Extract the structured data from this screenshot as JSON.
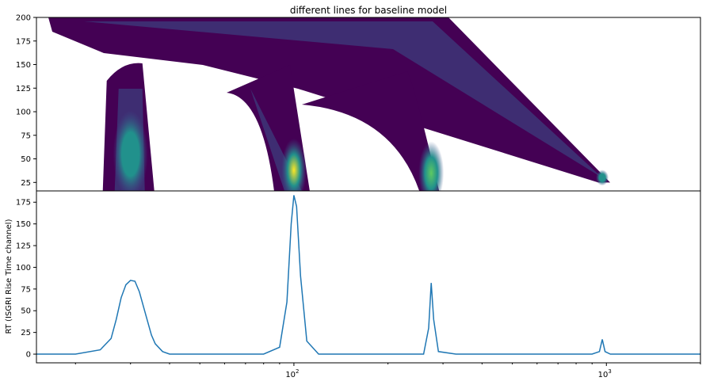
{
  "chart_data": [
    {
      "type": "heatmap",
      "title": "different lines for baseline model",
      "xlabel": "",
      "ylabel": "",
      "xscale": "log",
      "xlim": [
        15,
        2000
      ],
      "ylim": [
        16,
        200
      ],
      "yticks": [
        25,
        50,
        75,
        100,
        125,
        150,
        175,
        200
      ],
      "colormap": [
        "#440154",
        "#3b528b",
        "#21918c",
        "#5ec962",
        "#fde725"
      ],
      "blobs": [
        {
          "x": 30,
          "y": 55,
          "peak": 0.55
        },
        {
          "x": 100,
          "y": 38,
          "peak": 1.0
        },
        {
          "x": 275,
          "y": 35,
          "peak": 0.8
        },
        {
          "x": 970,
          "y": 30,
          "peak": 0.7
        }
      ]
    },
    {
      "type": "line",
      "title": "",
      "xlabel": "",
      "ylabel": "RT (ISGRI Rise Time channel)",
      "xscale": "log",
      "xlim": [
        15,
        2000
      ],
      "ylim": [
        -10,
        188
      ],
      "yticks": [
        0,
        25,
        50,
        75,
        100,
        125,
        150,
        175
      ],
      "xticks": [
        {
          "value": 100,
          "base": "10",
          "exp": "2"
        },
        {
          "value": 1000,
          "base": "10",
          "exp": "3"
        }
      ],
      "line_color": "#1f77b4",
      "series": [
        {
          "x": [
            15,
            20,
            24,
            26,
            27,
            28,
            29,
            30,
            31,
            32,
            33,
            34,
            35,
            36,
            38,
            40,
            50,
            80,
            90,
            95,
            98,
            100,
            102,
            105,
            110,
            120,
            200,
            260,
            270,
            275,
            280,
            290,
            330,
            900,
            950,
            970,
            990,
            1030,
            2000
          ],
          "y": [
            0,
            0,
            5,
            18,
            40,
            65,
            80,
            85,
            84,
            72,
            55,
            38,
            22,
            12,
            3,
            0,
            0,
            0,
            8,
            60,
            150,
            183,
            170,
            90,
            15,
            0,
            0,
            0,
            30,
            82,
            40,
            3,
            0,
            0,
            3,
            17,
            3,
            0,
            0
          ]
        }
      ]
    }
  ]
}
